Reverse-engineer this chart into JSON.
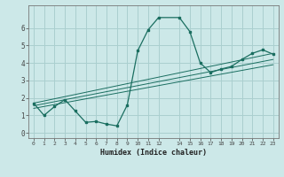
{
  "xlabel": "Humidex (Indice chaleur)",
  "bg_color": "#cce8e8",
  "grid_color": "#aacfcf",
  "line_color": "#1a6e60",
  "xlim": [
    -0.5,
    23.5
  ],
  "ylim": [
    -0.3,
    7.3
  ],
  "xticks": [
    0,
    1,
    2,
    3,
    4,
    5,
    6,
    7,
    8,
    9,
    10,
    11,
    12,
    14,
    15,
    16,
    17,
    18,
    19,
    20,
    21,
    22,
    23
  ],
  "yticks": [
    0,
    1,
    2,
    3,
    4,
    5,
    6
  ],
  "curve_x": [
    0,
    1,
    2,
    3,
    4,
    5,
    6,
    7,
    8,
    9,
    10,
    11,
    12,
    14,
    15,
    16,
    17,
    18,
    19,
    20,
    21,
    22,
    23
  ],
  "curve_y": [
    1.7,
    1.0,
    1.5,
    1.9,
    1.25,
    0.6,
    0.65,
    0.5,
    0.4,
    1.6,
    4.7,
    5.9,
    6.6,
    6.6,
    5.8,
    4.0,
    3.45,
    3.65,
    3.8,
    4.2,
    4.55,
    4.75,
    4.5
  ],
  "line1_x": [
    0,
    23
  ],
  "line1_y": [
    1.7,
    4.55
  ],
  "line2_x": [
    0,
    23
  ],
  "line2_y": [
    1.55,
    4.2
  ],
  "line3_x": [
    0,
    23
  ],
  "line3_y": [
    1.4,
    3.9
  ]
}
